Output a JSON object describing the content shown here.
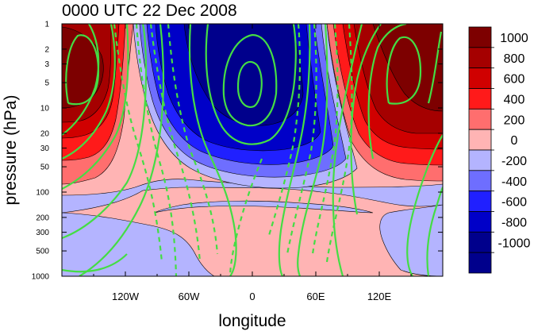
{
  "chart_data": {
    "type": "contour",
    "title": "0000 UTC 22 Dec 2008",
    "xlabel": "longitude",
    "ylabel": "pressure (hPa)",
    "x_range": [
      -180,
      180
    ],
    "y_range": [
      1000,
      1
    ],
    "y_scale": "log",
    "x_ticks": [
      {
        "value": -120,
        "label": "120W"
      },
      {
        "value": -60,
        "label": "60W"
      },
      {
        "value": 0,
        "label": "0"
      },
      {
        "value": 60,
        "label": "60E"
      },
      {
        "value": 120,
        "label": "120E"
      }
    ],
    "y_ticks": [
      {
        "value": 1,
        "label": "1"
      },
      {
        "value": 2,
        "label": "2"
      },
      {
        "value": 3,
        "label": "3"
      },
      {
        "value": 5,
        "label": "5"
      },
      {
        "value": 10,
        "label": "10"
      },
      {
        "value": 20,
        "label": "20"
      },
      {
        "value": 30,
        "label": "30"
      },
      {
        "value": 50,
        "label": "50"
      },
      {
        "value": 100,
        "label": "100"
      },
      {
        "value": 200,
        "label": "200"
      },
      {
        "value": 300,
        "label": "300"
      },
      {
        "value": 500,
        "label": "500"
      },
      {
        "value": 1000,
        "label": "1000"
      }
    ],
    "colorbar": {
      "levels": [
        {
          "label": "1000",
          "color": "#7d0000"
        },
        {
          "label": "800",
          "color": "#a50000"
        },
        {
          "label": "600",
          "color": "#d00000"
        },
        {
          "label": "400",
          "color": "#ff1a1a"
        },
        {
          "label": "200",
          "color": "#ff6e6e"
        },
        {
          "label": "0",
          "color": "#ffb4b4"
        },
        {
          "label": "-200",
          "color": "#b4b4ff"
        },
        {
          "label": "-400",
          "color": "#6e6eff"
        },
        {
          "label": "-600",
          "color": "#2020ff"
        },
        {
          "label": "-800",
          "color": "#0000c8"
        },
        {
          "label": "-1000",
          "color": "#00008c"
        }
      ],
      "bottom_color": "#00008c"
    },
    "overlay_color": "#44dd44",
    "shaded_field": {
      "wave_lon_degrees": [
        -170,
        -10,
        170
      ],
      "wave_signs": [
        "positive",
        "negative",
        "positive"
      ],
      "peak_value_above_1000": true
    }
  }
}
